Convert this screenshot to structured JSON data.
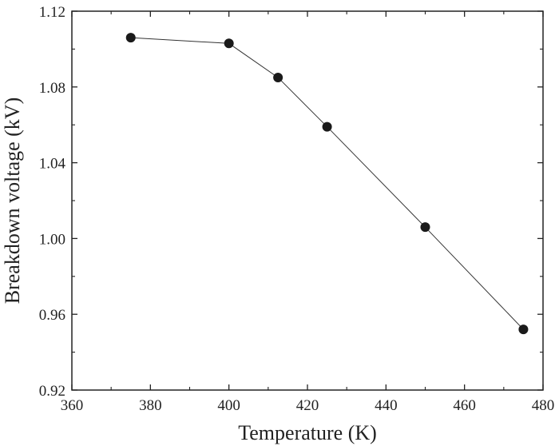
{
  "chart_data": {
    "type": "line",
    "title": "",
    "xlabel": "Temperature (K)",
    "ylabel": "Breakdown voltage (kV)",
    "xlim": [
      360,
      480
    ],
    "ylim": [
      0.92,
      1.12
    ],
    "xticks": [
      360,
      380,
      400,
      420,
      440,
      460,
      480
    ],
    "yticks": [
      0.92,
      0.96,
      1.0,
      1.04,
      1.08,
      1.12
    ],
    "ytick_labels": [
      "0.92",
      "0.96",
      "1.00",
      "1.04",
      "1.08",
      "1.12"
    ],
    "grid": false,
    "legend": "none",
    "series": [
      {
        "x": [
          375,
          400,
          412.5,
          425,
          450,
          475
        ],
        "y": [
          1.106,
          1.103,
          1.085,
          1.059,
          1.006,
          0.952
        ],
        "marker": "filled-circle",
        "color": "#1a1a1a"
      }
    ]
  }
}
